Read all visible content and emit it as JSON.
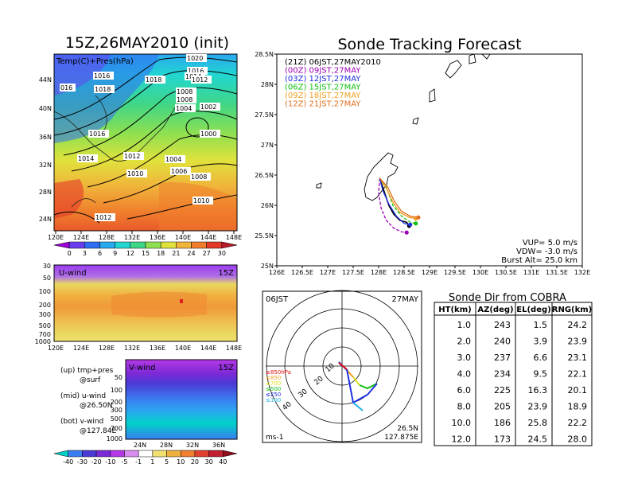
{
  "left_panel": {
    "title": "15Z,26MAY2010 (init)",
    "map": {
      "inner_label": "Temp(C)+Pres(hPa)",
      "x_ticks": [
        "120E",
        "124E",
        "128E",
        "132E",
        "136E",
        "140E",
        "144E",
        "148E"
      ],
      "y_ticks": [
        "24N",
        "28N",
        "32N",
        "36N",
        "40N",
        "44N"
      ],
      "isobar_labels": [
        "1020",
        "1016",
        "1016",
        "1018",
        "1014",
        "1012",
        "1018",
        "016",
        "1008",
        "1008",
        "1004",
        "1002",
        "1016",
        "1000",
        "1014",
        "1012",
        "1004",
        "1010",
        "1006",
        "1008",
        "1010",
        "1012"
      ],
      "colorbar": [
        "0",
        "3",
        "6",
        "9",
        "12",
        "15",
        "18",
        "21",
        "24",
        "27",
        "30"
      ],
      "colorbar_colors": [
        "#9b00d6",
        "#6a3cf0",
        "#2f6df5",
        "#2aa8f0",
        "#22d6d0",
        "#3fd688",
        "#8fe050",
        "#e0e23c",
        "#f0b43a",
        "#f07c2c",
        "#e43a2a",
        "#b81a2a"
      ]
    },
    "u_wind": {
      "label": "U-wind",
      "time": "15Z",
      "y_ticks": [
        "30",
        "50",
        "100",
        "200",
        "300",
        "500",
        "700",
        "1000"
      ],
      "x_ticks": [
        "120E",
        "124E",
        "128E",
        "132E",
        "136E",
        "140E",
        "144E",
        "148E"
      ]
    },
    "v_wind": {
      "label": "V-wind",
      "time": "15Z",
      "y_ticks": [
        "50",
        "100",
        "200",
        "300",
        "500",
        "700",
        "1000"
      ],
      "x_ticks": [
        "24N",
        "28N",
        "32N",
        "36N"
      ],
      "colorbar": [
        "-40",
        "-30",
        "-20",
        "-10",
        "-5",
        "-1",
        "1",
        "5",
        "10",
        "20",
        "30",
        "40"
      ],
      "colorbar_colors": [
        "#00d2c8",
        "#3a7ef0",
        "#4a3ad6",
        "#7a2ad6",
        "#b438e6",
        "#d88cf0",
        "#ffffff",
        "#f0e070",
        "#f0b040",
        "#f08030",
        "#e04030",
        "#c02030",
        "#901020"
      ]
    },
    "legend": {
      "up_1": "(up) tmp+pres",
      "up_2": "@surf",
      "mid_1": "(mid) u-wind",
      "mid_2": "@26.50N",
      "bot_1": "(bot) v-wind",
      "bot_2": "@127.84E"
    }
  },
  "tracking": {
    "title": "Sonde Tracking Forecast",
    "x_ticks": [
      "126E",
      "126.5E",
      "127E",
      "127.5E",
      "128E",
      "128.5E",
      "129E",
      "129.5E",
      "130E",
      "130.5E",
      "131E",
      "131.5E",
      "132E"
    ],
    "y_ticks": [
      "25N",
      "25.5N",
      "26N",
      "26.5N",
      "27N",
      "27.5N",
      "28N",
      "28.5N"
    ],
    "xlim": [
      126,
      132
    ],
    "ylim": [
      25,
      28.5
    ],
    "tracks": [
      {
        "label": "(21Z) 06JST,27MAY2010",
        "color": "#000000",
        "points": [
          [
            128.02,
            26.45
          ],
          [
            128.1,
            26.25
          ],
          [
            128.2,
            26.0
          ],
          [
            128.3,
            25.85
          ],
          [
            128.42,
            25.75
          ],
          [
            128.55,
            25.72
          ],
          [
            128.6,
            25.66
          ]
        ]
      },
      {
        "label": "(00Z) 09JST,27MAY",
        "color": "#9b00b4",
        "points": [
          [
            128.02,
            26.45
          ],
          [
            128.0,
            26.2
          ],
          [
            128.05,
            25.95
          ],
          [
            128.15,
            25.75
          ],
          [
            128.3,
            25.62
          ],
          [
            128.45,
            25.56
          ],
          [
            128.55,
            25.55
          ]
        ]
      },
      {
        "label": "(03Z) 12JST,27MAY",
        "color": "#2030e0",
        "points": [
          [
            128.02,
            26.45
          ],
          [
            128.08,
            26.25
          ],
          [
            128.2,
            26.02
          ],
          [
            128.35,
            25.82
          ],
          [
            128.5,
            25.7
          ],
          [
            128.62,
            25.68
          ]
        ]
      },
      {
        "label": "(06Z) 15JST,27MAY",
        "color": "#10c010",
        "points": [
          [
            128.02,
            26.45
          ],
          [
            128.15,
            26.3
          ],
          [
            128.28,
            26.0
          ],
          [
            128.45,
            25.82
          ],
          [
            128.62,
            25.72
          ],
          [
            128.73,
            25.7
          ]
        ]
      },
      {
        "label": "(09Z) 18JST,27MAY",
        "color": "#f0a020",
        "points": [
          [
            128.02,
            26.45
          ],
          [
            128.15,
            26.28
          ],
          [
            128.28,
            26.05
          ],
          [
            128.42,
            25.88
          ],
          [
            128.6,
            25.8
          ],
          [
            128.73,
            25.78
          ]
        ]
      },
      {
        "label": "(12Z) 21JST,27MAY",
        "color": "#e07020",
        "points": [
          [
            128.02,
            26.45
          ],
          [
            128.18,
            26.3
          ],
          [
            128.3,
            26.08
          ],
          [
            128.45,
            25.9
          ],
          [
            128.62,
            25.82
          ],
          [
            128.78,
            25.8
          ]
        ]
      }
    ],
    "params": [
      "VUP= 5.0 m/s",
      "VDW= -3.0 m/s",
      "Burst Alt= 25.0 km"
    ]
  },
  "polar": {
    "time_left": "06JST",
    "date_right": "27MAY",
    "levels": [
      {
        "text": "≥850hPa",
        "color": "#e01010"
      },
      {
        "text": "≤850",
        "color": "#f0a020"
      },
      {
        "text": "≤700",
        "color": "#e0e020"
      },
      {
        "text": "≤500",
        "color": "#10c010"
      },
      {
        "text": "≤250",
        "color": "#2030e0"
      },
      {
        "text": "≤100",
        "color": "#20b0e0"
      }
    ],
    "ring_labels": [
      "10",
      "20",
      "30",
      "40"
    ],
    "unit": "ms-1",
    "loc_1": "26.5N",
    "loc_2": "127.875E"
  },
  "cobra": {
    "title": "Sonde Dir from COBRA",
    "headers": [
      "HT(km)",
      "AZ(deg)",
      "EL(deg)",
      "RNG(km)"
    ],
    "rows": [
      [
        "1.0",
        "243",
        "1.5",
        "24.2"
      ],
      [
        "2.0",
        "240",
        "3.9",
        "23.9"
      ],
      [
        "3.0",
        "237",
        "6.6",
        "23.1"
      ],
      [
        "4.0",
        "234",
        "9.5",
        "22.1"
      ],
      [
        "6.0",
        "225",
        "16.3",
        "20.1"
      ],
      [
        "8.0",
        "205",
        "23.9",
        "18.9"
      ],
      [
        "10.0",
        "186",
        "25.8",
        "22.2"
      ],
      [
        "12.0",
        "173",
        "24.5",
        "28.0"
      ]
    ]
  }
}
